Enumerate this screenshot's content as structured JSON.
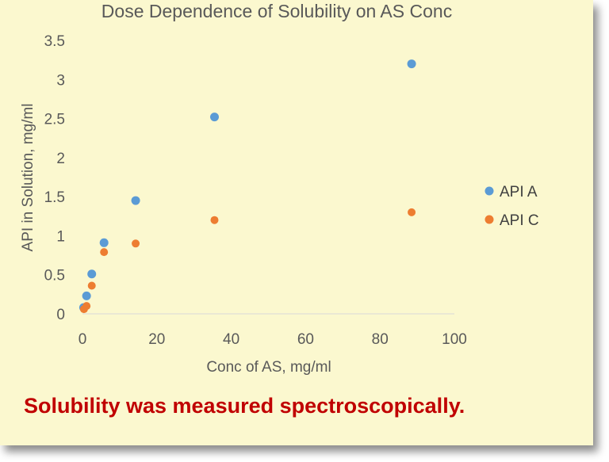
{
  "chart_data": {
    "type": "scatter",
    "title": "Dose Dependence of Solubility on AS Conc",
    "xlabel": "Conc of AS, mg/ml",
    "ylabel": "API in Solution, mg/ml",
    "xlim": [
      0,
      100
    ],
    "ylim": [
      0,
      3.5
    ],
    "xticks": [
      "0",
      "20",
      "40",
      "60",
      "80",
      "100"
    ],
    "yticks": [
      "0",
      "0.5",
      "1",
      "1.5",
      "2",
      "2.5",
      "3",
      "3.5"
    ],
    "grid": false,
    "legend_position": "right",
    "series": [
      {
        "name": "API A",
        "color": "#5b9bd5",
        "x": [
          0.3,
          1.1,
          2.5,
          5.8,
          14.3,
          35.5,
          88.5
        ],
        "y": [
          0.08,
          0.23,
          0.51,
          0.91,
          1.45,
          2.52,
          3.2
        ]
      },
      {
        "name": "API C",
        "color": "#ed7d31",
        "x": [
          0.4,
          1.1,
          2.5,
          5.8,
          14.3,
          35.5,
          88.5
        ],
        "y": [
          0.06,
          0.1,
          0.36,
          0.79,
          0.9,
          1.2,
          1.3
        ]
      }
    ]
  },
  "note": "Solubility was measured spectroscopically."
}
